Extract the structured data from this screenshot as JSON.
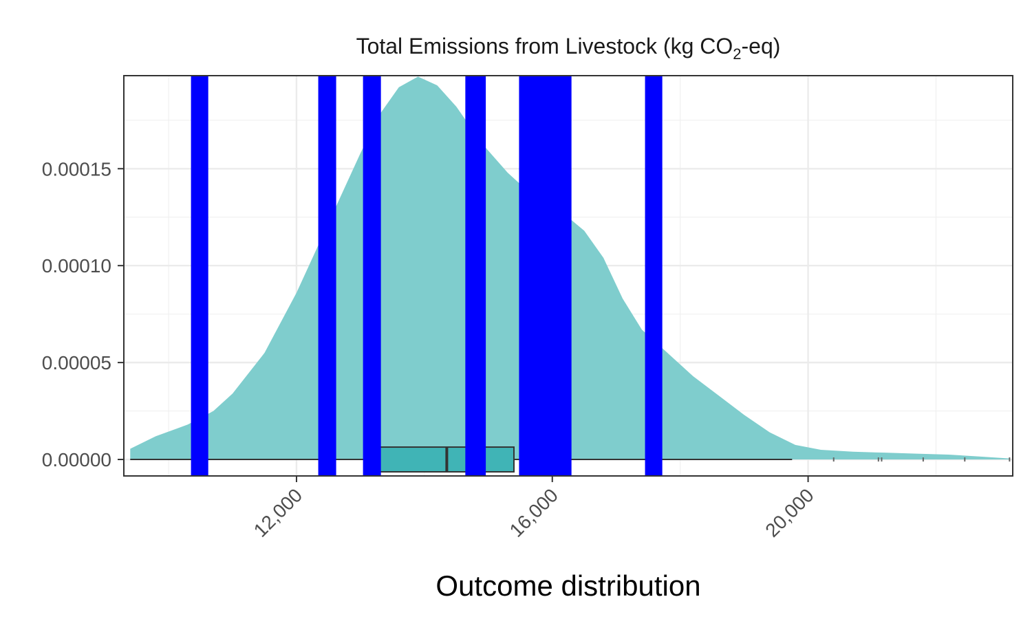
{
  "chart_data": {
    "type": "area",
    "title": "Total Emissions from Livestock (kg CO",
    "title_subscript": "2",
    "title_suffix": "-eq)",
    "xlabel": "Outcome distribution",
    "ylabel": "",
    "xlim": [
      9300,
      23200
    ],
    "ylim": [
      -8.5e-06,
      0.000198
    ],
    "x_ticks": [
      12000,
      16000,
      20000
    ],
    "x_tick_labels": [
      "12,000",
      "16,000",
      "20,000"
    ],
    "x_minor_ticks": [
      10000,
      14000,
      18000,
      22000
    ],
    "y_ticks": [
      0,
      5e-05,
      0.0001,
      0.00015
    ],
    "y_tick_labels": [
      "0.00000",
      "0.00005",
      "0.00010",
      "0.00015"
    ],
    "y_minor_ticks": [
      2.5e-05,
      7.5e-05,
      0.000125,
      0.000175
    ],
    "grid": true,
    "density": {
      "x": [
        9400,
        9800,
        10300,
        10700,
        11000,
        11500,
        12000,
        12500,
        13000,
        13300,
        13600,
        13900,
        14200,
        14500,
        14900,
        15300,
        15700,
        16100,
        16500,
        16800,
        17100,
        17400,
        17800,
        18200,
        18600,
        19000,
        19400,
        19800,
        20200,
        20700,
        21200,
        21700,
        22200,
        22700,
        23150
      ],
      "y": [
        5.5e-06,
        1.2e-05,
        1.8e-05,
        2.5e-05,
        3.4e-05,
        5.5e-05,
        8.6e-05,
        0.000122,
        0.000158,
        0.000178,
        0.000192,
        0.0001975,
        0.000193,
        0.000182,
        0.000163,
        0.000148,
        0.000136,
        0.000129,
        0.000118,
        0.000104,
        8.3e-05,
        6.7e-05,
        5.5e-05,
        4.3e-05,
        3.3e-05,
        2.3e-05,
        1.4e-05,
        7.5e-06,
        5e-06,
        4e-06,
        3.5e-06,
        3e-06,
        2.5e-06,
        1.5e-06,
        5e-07
      ],
      "color": "#7fcdcd"
    },
    "boxplot": {
      "whisker_low": 9400,
      "q1": 13100,
      "median": 14350,
      "q3": 15400,
      "whisker_high": 19750,
      "outliers": [
        20400,
        21100,
        21150,
        21800,
        22450,
        23150
      ],
      "fill": "#40b4b6",
      "stroke": "#333333"
    },
    "vertical_bands": {
      "color": "#0000ff",
      "ranges": [
        [
          10350,
          10620
        ],
        [
          12340,
          12620
        ],
        [
          13040,
          13320
        ],
        [
          14640,
          14960
        ],
        [
          15480,
          16300
        ],
        [
          17450,
          17720
        ]
      ]
    }
  }
}
